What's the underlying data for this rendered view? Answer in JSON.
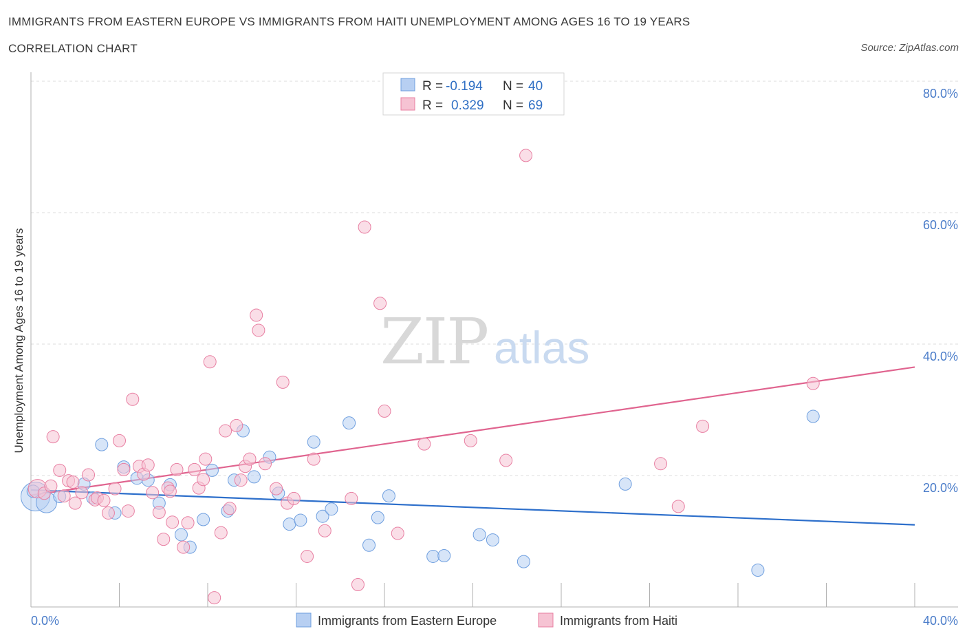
{
  "chart_data": {
    "type": "scatter",
    "title": "IMMIGRANTS FROM EASTERN EUROPE VS IMMIGRANTS FROM HAITI UNEMPLOYMENT AMONG AGES 16 TO 19 YEARS",
    "subtitle": "CORRELATION CHART",
    "source": "Source: ZipAtlas.com",
    "xlabel": "",
    "ylabel": "Unemployment Among Ages 16 to 19 years",
    "xlim": [
      0,
      40
    ],
    "ylim": [
      0,
      80
    ],
    "x_tick_labels": [
      "0.0%",
      "40.0%"
    ],
    "y_ticks": [
      20,
      40,
      60,
      80
    ],
    "y_tick_labels": [
      "20.0%",
      "40.0%",
      "60.0%",
      "80.0%"
    ],
    "watermark": {
      "zip": "ZIP",
      "atlas": "atlas"
    },
    "series": [
      {
        "name": "Immigrants from Eastern Europe",
        "color": "#6f9fdf",
        "fill": "#b7cff2",
        "R": "-0.194",
        "N": "40",
        "trend": {
          "x0": 0,
          "y0": 17.8,
          "x1": 40,
          "y1": 12.5
        },
        "points": [
          [
            0.2,
            16.8,
            1.4
          ],
          [
            0.7,
            15.9,
            1.0
          ],
          [
            1.3,
            16.8,
            0.6
          ],
          [
            2.4,
            18.7,
            0.6
          ],
          [
            2.8,
            16.6,
            0.6
          ],
          [
            3.2,
            24.7,
            0.6
          ],
          [
            3.8,
            14.3,
            0.6
          ],
          [
            4.2,
            21.3,
            0.6
          ],
          [
            4.8,
            19.6,
            0.6
          ],
          [
            5.3,
            19.3,
            0.6
          ],
          [
            5.8,
            15.8,
            0.6
          ],
          [
            6.3,
            18.6,
            0.6
          ],
          [
            6.8,
            11.0,
            0.6
          ],
          [
            7.2,
            9.1,
            0.6
          ],
          [
            7.8,
            13.3,
            0.6
          ],
          [
            8.2,
            20.8,
            0.6
          ],
          [
            8.9,
            14.6,
            0.6
          ],
          [
            9.2,
            19.3,
            0.6
          ],
          [
            9.6,
            26.8,
            0.6
          ],
          [
            10.1,
            19.8,
            0.6
          ],
          [
            10.8,
            22.8,
            0.6
          ],
          [
            11.2,
            17.3,
            0.6
          ],
          [
            11.7,
            12.6,
            0.6
          ],
          [
            12.2,
            13.2,
            0.6
          ],
          [
            12.8,
            25.1,
            0.6
          ],
          [
            13.2,
            13.8,
            0.6
          ],
          [
            13.6,
            14.9,
            0.6
          ],
          [
            14.4,
            28.0,
            0.6
          ],
          [
            15.3,
            9.4,
            0.6
          ],
          [
            15.7,
            13.6,
            0.6
          ],
          [
            16.2,
            16.9,
            0.6
          ],
          [
            18.2,
            7.7,
            0.6
          ],
          [
            18.7,
            7.8,
            0.6
          ],
          [
            20.3,
            11.0,
            0.6
          ],
          [
            20.9,
            10.2,
            0.6
          ],
          [
            22.3,
            6.9,
            0.6
          ],
          [
            26.9,
            18.7,
            0.6
          ],
          [
            32.9,
            5.6,
            0.6
          ],
          [
            35.4,
            29.0,
            0.6
          ],
          [
            0.1,
            17.6,
            0.6
          ]
        ]
      },
      {
        "name": "Immigrants from Haiti",
        "color": "#e87fa2",
        "fill": "#f6c3d3",
        "R": "0.329",
        "N": "69",
        "trend": {
          "x0": 0,
          "y0": 17.0,
          "x1": 40,
          "y1": 36.5
        },
        "points": [
          [
            0.3,
            18.0,
            0.9
          ],
          [
            0.6,
            17.3,
            0.6
          ],
          [
            0.9,
            18.4,
            0.6
          ],
          [
            1.0,
            25.9,
            0.6
          ],
          [
            1.3,
            20.8,
            0.6
          ],
          [
            1.5,
            16.9,
            0.6
          ],
          [
            1.7,
            19.2,
            0.6
          ],
          [
            1.9,
            19.0,
            0.6
          ],
          [
            2.0,
            15.8,
            0.6
          ],
          [
            2.3,
            17.4,
            0.6
          ],
          [
            2.6,
            20.1,
            0.6
          ],
          [
            2.9,
            16.3,
            0.6
          ],
          [
            3.0,
            16.6,
            0.6
          ],
          [
            3.3,
            16.2,
            0.6
          ],
          [
            3.5,
            14.3,
            0.6
          ],
          [
            3.8,
            18.0,
            0.6
          ],
          [
            4.0,
            25.3,
            0.6
          ],
          [
            4.2,
            20.9,
            0.6
          ],
          [
            4.4,
            14.6,
            0.6
          ],
          [
            4.6,
            31.6,
            0.6
          ],
          [
            4.9,
            21.4,
            0.6
          ],
          [
            5.1,
            20.2,
            0.6
          ],
          [
            5.3,
            21.6,
            0.6
          ],
          [
            5.5,
            17.4,
            0.6
          ],
          [
            5.8,
            14.4,
            0.6
          ],
          [
            6.0,
            10.3,
            0.6
          ],
          [
            6.2,
            18.1,
            0.6
          ],
          [
            6.4,
            12.9,
            0.6
          ],
          [
            6.6,
            20.9,
            0.6
          ],
          [
            6.9,
            9.1,
            0.6
          ],
          [
            7.1,
            12.8,
            0.6
          ],
          [
            7.4,
            20.9,
            0.6
          ],
          [
            7.6,
            18.1,
            0.6
          ],
          [
            7.8,
            19.4,
            0.6
          ],
          [
            7.9,
            22.5,
            0.6
          ],
          [
            8.1,
            37.3,
            0.6
          ],
          [
            8.3,
            1.4,
            0.6
          ],
          [
            8.6,
            11.3,
            0.6
          ],
          [
            8.8,
            26.8,
            0.6
          ],
          [
            9.0,
            15.0,
            0.6
          ],
          [
            9.3,
            27.6,
            0.6
          ],
          [
            9.5,
            19.3,
            0.6
          ],
          [
            9.7,
            21.4,
            0.6
          ],
          [
            9.9,
            22.5,
            0.6
          ],
          [
            10.2,
            44.4,
            0.6
          ],
          [
            10.3,
            42.1,
            0.6
          ],
          [
            10.6,
            21.8,
            0.6
          ],
          [
            11.1,
            18.0,
            0.6
          ],
          [
            11.4,
            34.2,
            0.6
          ],
          [
            11.6,
            15.8,
            0.6
          ],
          [
            11.9,
            16.5,
            0.6
          ],
          [
            12.5,
            7.7,
            0.6
          ],
          [
            12.8,
            22.5,
            0.6
          ],
          [
            13.3,
            11.6,
            0.6
          ],
          [
            14.5,
            16.5,
            0.6
          ],
          [
            14.8,
            3.4,
            0.6
          ],
          [
            15.1,
            57.8,
            0.6
          ],
          [
            15.8,
            46.2,
            0.6
          ],
          [
            16.0,
            29.8,
            0.6
          ],
          [
            16.6,
            11.2,
            0.6
          ],
          [
            17.8,
            24.8,
            0.6
          ],
          [
            19.9,
            25.3,
            0.6
          ],
          [
            21.5,
            22.3,
            0.6
          ],
          [
            22.4,
            68.7,
            0.6
          ],
          [
            28.5,
            21.8,
            0.6
          ],
          [
            29.3,
            15.3,
            0.6
          ],
          [
            30.4,
            27.5,
            0.6
          ],
          [
            35.4,
            34.0,
            0.6
          ],
          [
            6.3,
            17.6,
            0.6
          ]
        ]
      }
    ],
    "legend": {
      "placement": "top-center",
      "r_label": "R =",
      "n_label": "N ="
    }
  }
}
